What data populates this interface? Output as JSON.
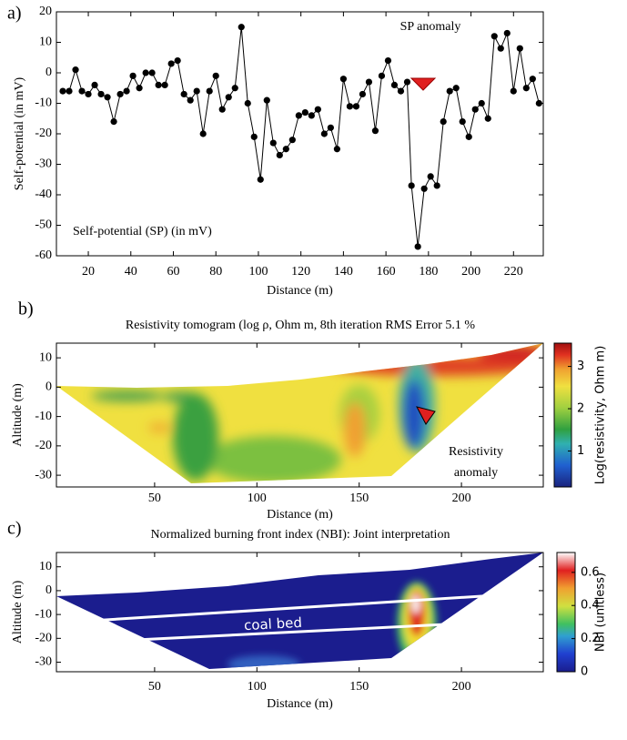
{
  "chart_data": [
    {
      "type": "line",
      "panel_label": "a)",
      "annotation": "SP anomaly",
      "xlabel": "Distance (m)",
      "ylabel": "Self-potential (in mV)",
      "x": [
        8,
        11,
        14,
        17,
        20,
        23,
        26,
        29,
        32,
        35,
        38,
        41,
        44,
        47,
        50,
        53,
        56,
        59,
        62,
        65,
        68,
        71,
        74,
        77,
        80,
        83,
        86,
        89,
        92,
        95,
        98,
        101,
        104,
        107,
        110,
        113,
        116,
        119,
        122,
        125,
        128,
        131,
        134,
        137,
        140,
        143,
        146,
        149,
        152,
        155,
        158,
        161,
        164,
        167,
        170,
        172,
        175,
        178,
        181,
        184,
        187,
        190,
        193,
        196,
        199,
        202,
        205,
        208,
        211,
        214,
        217,
        220,
        223,
        226,
        229,
        232
      ],
      "series": [
        {
          "name": "Self-potential (SP) (in mV)",
          "color": "#000000",
          "values": [
            -6,
            -6,
            1,
            -6,
            -7,
            -4,
            -7,
            -8,
            -16,
            -7,
            -6,
            -1,
            -5,
            0,
            0,
            -4,
            -4,
            3,
            4,
            -7,
            -9,
            -6,
            -20,
            -6,
            -1,
            -12,
            -8,
            -5,
            15,
            -10,
            -21,
            -35,
            -9,
            -23,
            -27,
            -25,
            -22,
            -14,
            -13,
            -14,
            -12,
            -20,
            -18,
            -25,
            -2,
            -11,
            -11,
            -7,
            -3,
            -19,
            -1,
            4,
            -4,
            -6,
            -3,
            -37,
            -57,
            -38,
            -34,
            -37,
            -16,
            -6,
            -5,
            -16,
            -21,
            -12,
            -10,
            -15,
            12,
            8,
            13,
            -6,
            8,
            -5,
            -2,
            -10
          ]
        }
      ],
      "xlim": [
        5,
        234
      ],
      "ylim": [
        -60,
        20
      ],
      "xticks": [
        20,
        40,
        60,
        80,
        100,
        120,
        140,
        160,
        180,
        200,
        220
      ],
      "yticks": [
        -60,
        -50,
        -40,
        -30,
        -20,
        -10,
        0,
        10,
        20
      ]
    },
    {
      "type": "heatmap",
      "panel_label": "b)",
      "title": "Resistivity tomogram (log ρ, Ohm m, 8th iteration RMS Error 5.1 %",
      "xlabel": "Distance (m)",
      "ylabel": "Altitude (m)",
      "annotation": [
        "Resistivity",
        "anomaly"
      ],
      "xlim": [
        2,
        240
      ],
      "ylim": [
        -34,
        15
      ],
      "xticks": [
        50,
        100,
        150,
        200
      ],
      "yticks": [
        -30,
        -20,
        -10,
        0,
        10
      ],
      "colorbar": {
        "label": "Log(resistivity, Ohm m)",
        "lim": [
          0.15,
          3.55
        ],
        "ticks": [
          1,
          2,
          3
        ]
      }
    },
    {
      "type": "heatmap",
      "panel_label": "c)",
      "title": "Normalized burning front index (NBI): Joint interpretation",
      "xlabel": "Distance (m)",
      "ylabel": "Altitude (m)",
      "annotation": "coal bed",
      "xlim": [
        2,
        240
      ],
      "ylim": [
        -34,
        16
      ],
      "xticks": [
        50,
        100,
        150,
        200
      ],
      "yticks": [
        -30,
        -20,
        -10,
        0,
        10
      ],
      "colorbar": {
        "label": "NBI (unitless)",
        "lim": [
          0,
          0.72
        ],
        "ticks": [
          0,
          0.2,
          0.4,
          0.6
        ]
      }
    }
  ]
}
